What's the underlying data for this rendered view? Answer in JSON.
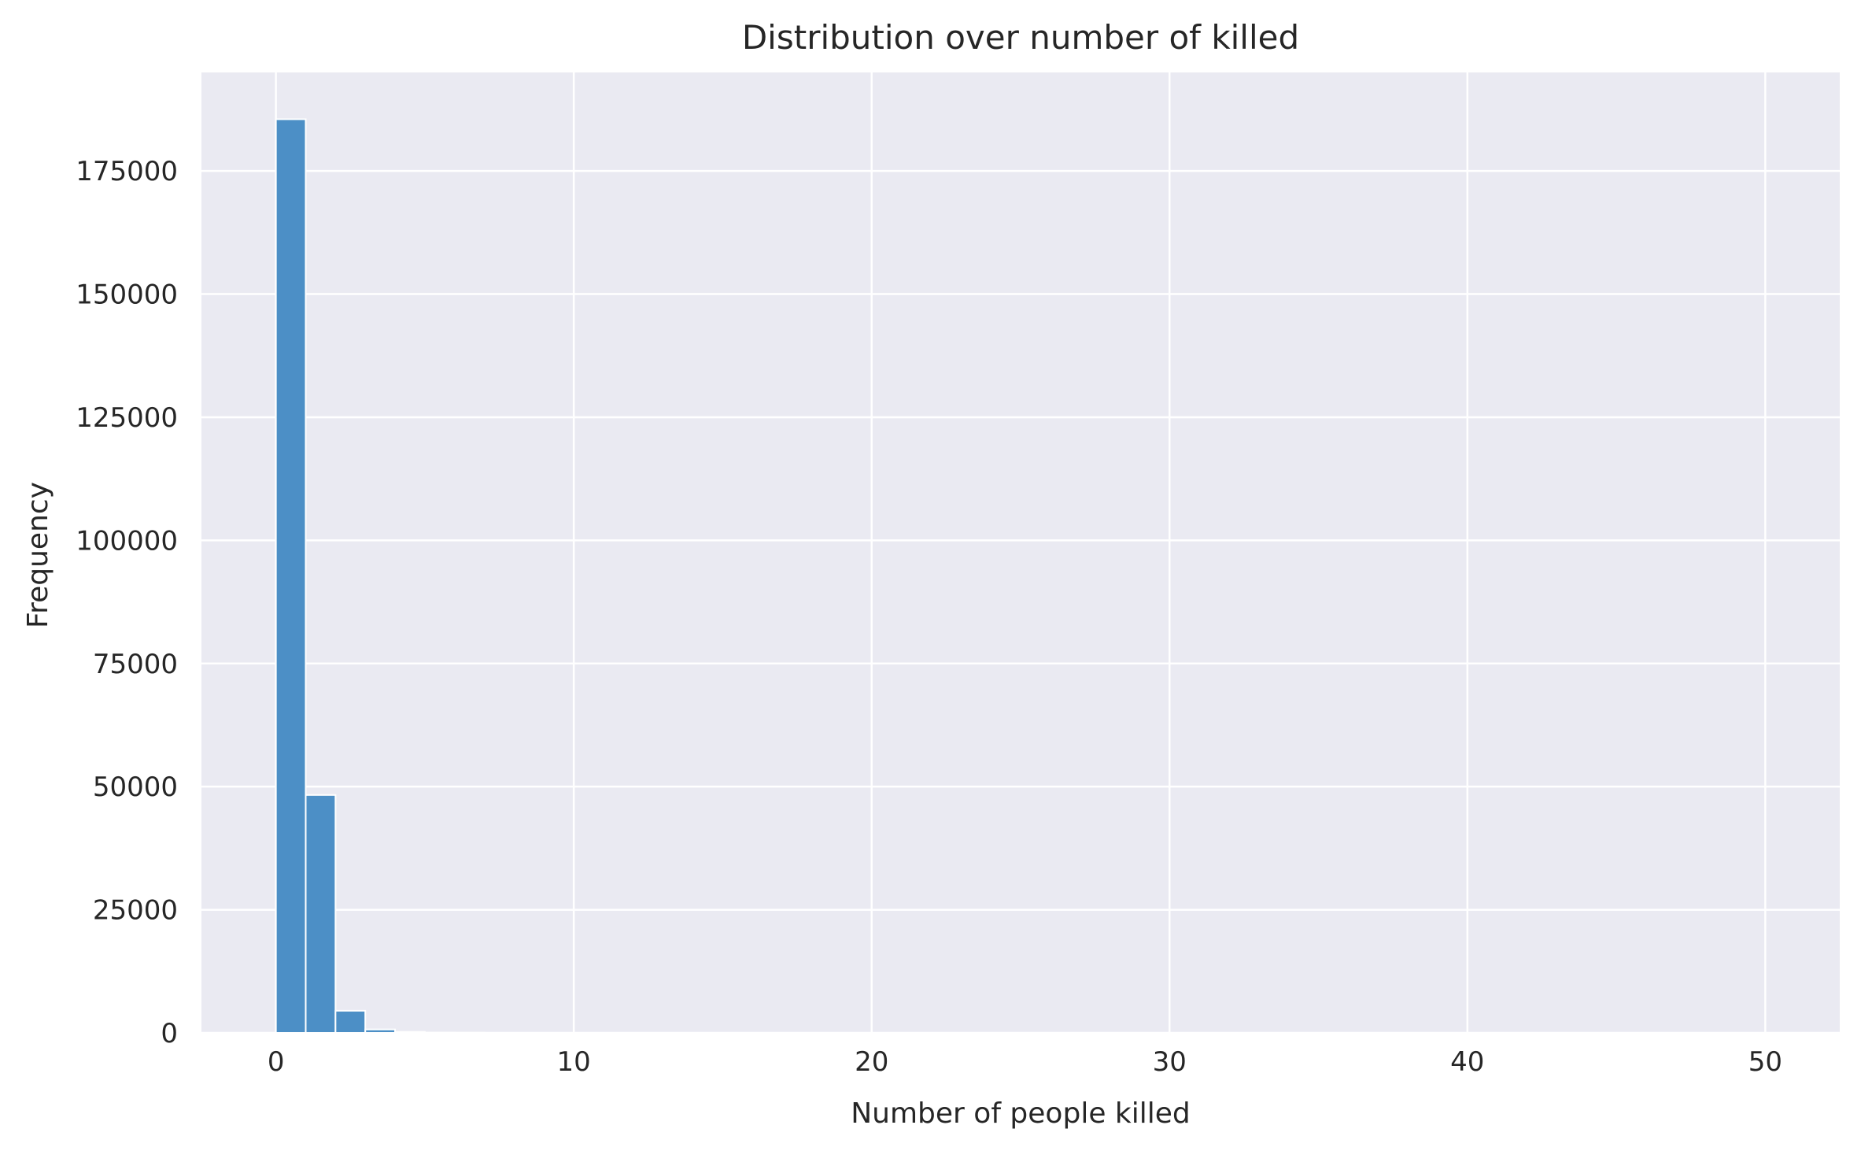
{
  "chart_data": {
    "type": "bar",
    "title": "Distribution over number of killed",
    "xlabel": "Number of people killed",
    "ylabel": "Frequency",
    "xlim": [
      -2.5,
      52.5
    ],
    "ylim": [
      0,
      195000
    ],
    "xticks": [
      0,
      10,
      20,
      30,
      40,
      50
    ],
    "yticks": [
      0,
      25000,
      50000,
      75000,
      100000,
      125000,
      150000,
      175000
    ],
    "grid": true,
    "bins": [
      {
        "x0": 0,
        "x1": 1,
        "value": 185500
      },
      {
        "x0": 1,
        "x1": 2,
        "value": 48300
      },
      {
        "x0": 2,
        "x1": 3,
        "value": 4500
      },
      {
        "x0": 3,
        "x1": 4,
        "value": 700
      },
      {
        "x0": 4,
        "x1": 5,
        "value": 200
      },
      {
        "x0": 5,
        "x1": 6,
        "value": 80
      },
      {
        "x0": 6,
        "x1": 7,
        "value": 30
      },
      {
        "x0": 7,
        "x1": 8,
        "value": 10
      }
    ],
    "colors": {
      "bar": "#4c8fc6",
      "background": "#eaeaf2",
      "grid": "#ffffff"
    }
  }
}
